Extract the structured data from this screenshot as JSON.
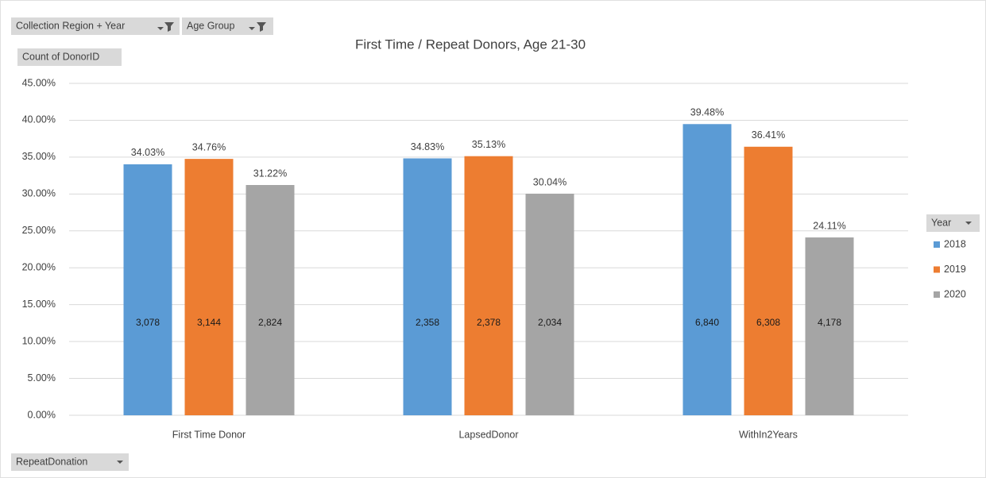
{
  "chart_data": {
    "type": "bar",
    "title": "First Time / Repeat Donors, Age 21-30",
    "filter_buttons": [
      "Collection Region + Year",
      "Age Group"
    ],
    "value_button": "Count of DonorID",
    "axis_button": "RepeatDonation",
    "legend_title": "Year",
    "categories": [
      "First Time Donor",
      "LapsedDonor",
      "WithIn2Years"
    ],
    "series": [
      {
        "name": "2018",
        "color": "#5b9bd5",
        "values": [
          34.03,
          34.83,
          39.48
        ],
        "value_labels": [
          "34.03%",
          "34.83%",
          "39.48%"
        ],
        "counts": [
          3078,
          2358,
          6840
        ],
        "count_labels": [
          "3,078",
          "2,358",
          "6,840"
        ]
      },
      {
        "name": "2019",
        "color": "#ed7d31",
        "values": [
          34.76,
          35.13,
          36.41
        ],
        "value_labels": [
          "34.76%",
          "35.13%",
          "36.41%"
        ],
        "counts": [
          3144,
          2378,
          6308
        ],
        "count_labels": [
          "3,144",
          "2,378",
          "6,308"
        ]
      },
      {
        "name": "2020",
        "color": "#a5a5a5",
        "values": [
          31.22,
          30.04,
          24.11
        ],
        "value_labels": [
          "31.22%",
          "30.04%",
          "24.11%"
        ],
        "counts": [
          2824,
          2034,
          4178
        ],
        "count_labels": [
          "2,824",
          "2,034",
          "4,178"
        ]
      }
    ],
    "ylim": [
      0,
      45
    ],
    "yticks": [
      {
        "value": 0,
        "label": "0.00%"
      },
      {
        "value": 5,
        "label": "5.00%"
      },
      {
        "value": 10,
        "label": "10.00%"
      },
      {
        "value": 15,
        "label": "15.00%"
      },
      {
        "value": 20,
        "label": "20.00%"
      },
      {
        "value": 25,
        "label": "25.00%"
      },
      {
        "value": 30,
        "label": "30.00%"
      },
      {
        "value": 35,
        "label": "35.00%"
      },
      {
        "value": 40,
        "label": "40.00%"
      },
      {
        "value": 45,
        "label": "45.00%"
      }
    ],
    "grid": true,
    "legend": "right"
  }
}
